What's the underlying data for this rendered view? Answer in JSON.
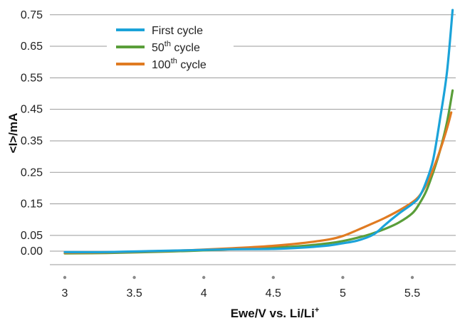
{
  "chart_data": {
    "type": "line",
    "xlabel": "Ewe/V vs. Li/Li",
    "xlabel_sup": "+",
    "ylabel": "<I>/mA",
    "xlim": [
      3,
      5.8
    ],
    "ylim": [
      -0.035,
      0.775
    ],
    "x_ticks": [
      {
        "value": 3,
        "label": "3"
      },
      {
        "value": 3.5,
        "label": "3.5"
      },
      {
        "value": 4,
        "label": "4"
      },
      {
        "value": 4.5,
        "label": "4.5"
      },
      {
        "value": 5,
        "label": "5"
      },
      {
        "value": 5.5,
        "label": "5.5"
      }
    ],
    "y_ticks": [
      {
        "value": 0.75,
        "label": "0.75"
      },
      {
        "value": 0.65,
        "label": "0.65"
      },
      {
        "value": 0.55,
        "label": "0.55"
      },
      {
        "value": 0.45,
        "label": "0.45"
      },
      {
        "value": 0.35,
        "label": "0.35"
      },
      {
        "value": 0.25,
        "label": "0.25"
      },
      {
        "value": 0.15,
        "label": "0.15"
      },
      {
        "value": 0.05,
        "label": "0.05"
      },
      {
        "value": 0.0,
        "label": "0.00"
      }
    ],
    "grid": "horizontal",
    "legend_position": "top-left",
    "series": [
      {
        "name": "First cycle",
        "name_main": "First cycle",
        "name_sup": "",
        "name_rest": "",
        "color": "#1ba3d9",
        "x": [
          3.0,
          3.3,
          3.6,
          3.9,
          4.2,
          4.5,
          4.7,
          4.9,
          5.0,
          5.1,
          5.2,
          5.25,
          5.3,
          5.4,
          5.5,
          5.55,
          5.6,
          5.65,
          5.7,
          5.75,
          5.79
        ],
        "y": [
          -0.003,
          -0.003,
          0.0,
          0.003,
          0.006,
          0.007,
          0.011,
          0.018,
          0.025,
          0.033,
          0.048,
          0.062,
          0.082,
          0.118,
          0.15,
          0.172,
          0.22,
          0.29,
          0.42,
          0.57,
          0.765
        ]
      },
      {
        "name": "50th cycle",
        "name_main": "50",
        "name_sup": "th",
        "name_rest": " cycle",
        "color": "#5a9e3a",
        "x": [
          3.0,
          3.3,
          3.6,
          3.9,
          4.2,
          4.5,
          4.7,
          4.9,
          5.0,
          5.1,
          5.2,
          5.3,
          5.4,
          5.5,
          5.55,
          5.6,
          5.65,
          5.7,
          5.75,
          5.79
        ],
        "y": [
          -0.007,
          -0.006,
          -0.003,
          0.001,
          0.006,
          0.011,
          0.016,
          0.025,
          0.032,
          0.042,
          0.054,
          0.07,
          0.09,
          0.12,
          0.15,
          0.19,
          0.25,
          0.32,
          0.41,
          0.51
        ]
      },
      {
        "name": "100th cycle",
        "name_main": "100",
        "name_sup": "th",
        "name_rest": " cycle",
        "color": "#e07b22",
        "x": [
          3.0,
          3.3,
          3.6,
          3.9,
          4.2,
          4.5,
          4.7,
          4.9,
          5.0,
          5.1,
          5.2,
          5.3,
          5.4,
          5.5,
          5.55,
          5.6,
          5.65,
          5.7,
          5.75,
          5.78
        ],
        "y": [
          -0.005,
          -0.004,
          -0.001,
          0.003,
          0.009,
          0.017,
          0.025,
          0.037,
          0.048,
          0.066,
          0.085,
          0.105,
          0.128,
          0.155,
          0.175,
          0.21,
          0.26,
          0.32,
          0.39,
          0.44
        ]
      }
    ]
  }
}
